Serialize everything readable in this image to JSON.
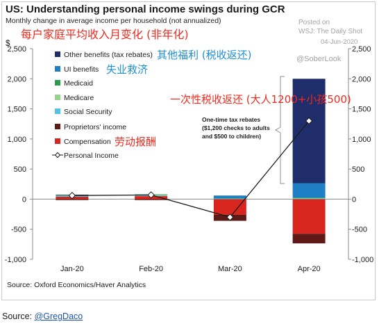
{
  "chart_data": {
    "type": "bar",
    "stacked": true,
    "title": "US: Understanding personal income swings during GCR",
    "subtitle": "Monthly change in average income per household (not annualized)",
    "ylabel": "$",
    "categories": [
      "Jan-20",
      "Feb-20",
      "Mar-20",
      "Apr-20"
    ],
    "ylim": [
      -1000,
      2500
    ],
    "yticks": [
      2500,
      2000,
      1500,
      1000,
      500,
      0,
      -500,
      -1000
    ],
    "ytick_labels": [
      "2,500",
      "2,000",
      "1,500",
      "1,000",
      "500",
      "0",
      "-500",
      "-1,000"
    ],
    "mirrored_right_axis": true,
    "grid": false,
    "legend": "top-left",
    "series": [
      {
        "name": "Other benefits (tax rebates)",
        "color": "#1f2d6b",
        "values": [
          10,
          0,
          0,
          1735
        ]
      },
      {
        "name": "UI benefits",
        "color": "#1e7fc4",
        "values": [
          0,
          0,
          45,
          240
        ]
      },
      {
        "name": "Medicaid",
        "color": "#2a9d4a",
        "values": [
          5,
          10,
          5,
          10
        ]
      },
      {
        "name": "Medicare",
        "color": "#93d38e",
        "values": [
          5,
          10,
          0,
          5
        ]
      },
      {
        "name": "Social Security",
        "color": "#52c3e6",
        "values": [
          15,
          10,
          10,
          10
        ]
      },
      {
        "name": "Proprietors' income",
        "color": "#5e1a17",
        "values": [
          -15,
          -15,
          -100,
          -160
        ]
      },
      {
        "name": "Compensation",
        "color": "#d8261f",
        "values": [
          40,
          50,
          -260,
          -575
        ]
      },
      {
        "name": "Personal Income",
        "type": "line",
        "marker": "diamond",
        "color": "#1a1a1a",
        "values": [
          60,
          70,
          -300,
          1300
        ]
      }
    ],
    "source": "Source: Oxford Economics/Haver Analytics"
  },
  "annotations": {
    "subtitle_cn": "每户家庭平均收入月变化 (非年化)",
    "other_benefits_cn": "其他福利 (税收返还)",
    "ui_benefits_cn": "失业救济",
    "compensation_cn": "劳动报酬",
    "rebate_cn": "一次性税收返还 (大人1200+小孩500)",
    "rebate_note": [
      "One-time tax rebates",
      "($1,200 checks to adults",
      "and $500 to children)"
    ]
  },
  "watermark": {
    "posted_on": "Posted on",
    "publisher": "WSJ: The Daily Shot",
    "date": "04-Jun-2020",
    "handle": "@SoberLook"
  },
  "footer": {
    "label": "Source:",
    "link": "@GregDaco"
  }
}
